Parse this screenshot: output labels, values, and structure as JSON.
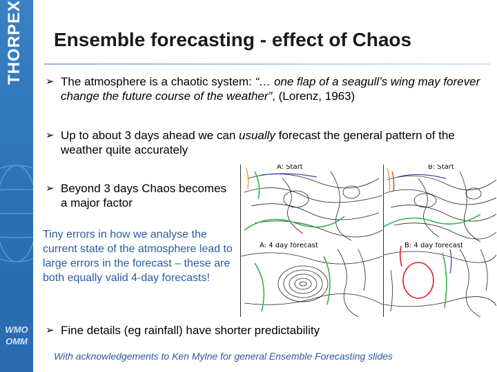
{
  "sidebar": {
    "logo_text": "THORPEX",
    "org_logo_lines": [
      "WMO",
      "OMM"
    ]
  },
  "title": "Ensemble forecasting - effect of Chaos",
  "bullets": [
    {
      "parts": [
        {
          "text": "The atmosphere is a chaotic system: ",
          "italic": false
        },
        {
          "text": "“… one flap of a seagull’s wing may forever change the future course of the weather”",
          "italic": true
        },
        {
          "text": ", (Lorenz, 1963)",
          "italic": false
        }
      ]
    },
    {
      "parts": [
        {
          "text": "Up to about 3 days ahead we can ",
          "italic": false
        },
        {
          "text": "usually",
          "italic": true
        },
        {
          "text": " forecast the general pattern of the weather quite accurately",
          "italic": false
        }
      ]
    },
    {
      "parts": [
        {
          "text": "Beyond 3 days Chaos becomes a major factor",
          "italic": false
        }
      ]
    },
    {
      "parts": [
        {
          "text": "Fine details (eg rainfall) have shorter predictability",
          "italic": false
        }
      ]
    }
  ],
  "side_note": "Tiny errors in how we analyse the current state of the atmosphere lead to large errors in the forecast – these are both equally valid 4-day forecasts!",
  "maps": {
    "a_start": "A: Start",
    "b_start": "B: Start",
    "a_4day": "A: 4 day forecast",
    "b_4day": "B: 4 day forecast"
  },
  "acknowledgement": "With acknowledgements to Ken Mylne for general Ensemble Forecasting slides",
  "colors": {
    "sidebar_blue": "#2a6fb4",
    "note_blue": "#2a5aa0",
    "contour_green": "#2fb34a",
    "contour_red": "#d8202a",
    "contour_blue": "#2a3fb0"
  }
}
